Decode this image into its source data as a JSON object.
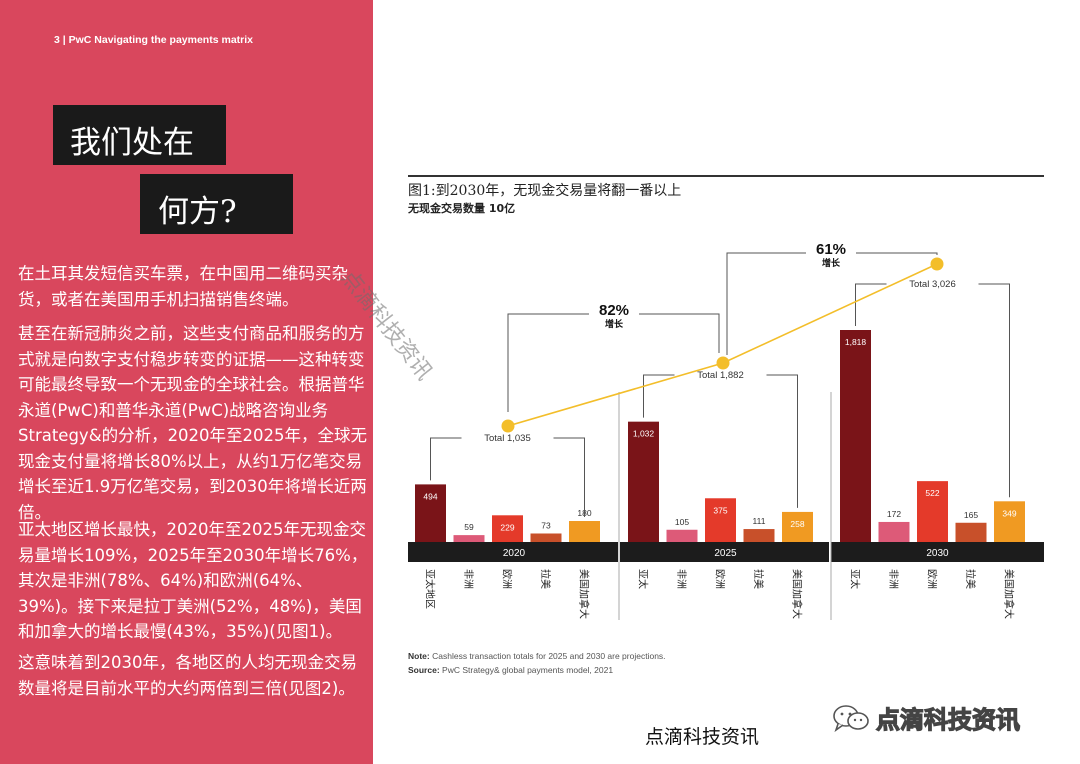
{
  "page": {
    "header": "3 | PwC Navigating the payments matrix",
    "title_line1": "我们处在",
    "title_line2": "何方?",
    "paragraphs": [
      "在土耳其发短信买车票，在中国用二维码买杂货，或者在美国用手机扫描销售终端。",
      "甚至在新冠肺炎之前，这些支付商品和服务的方式就是向数字支付稳步转变的证据——这种转变可能最终导致一个无现金的全球社会。根据普华永道(PwC)和普华永道(PwC)战略咨询业务Strategy&的分析，2020年至2025年，全球无现金支付量将增长80%以上，从约1万亿笔交易增长至近1.9万亿笔交易，到2030年将增长近两倍。",
      "亚太地区增长最快，2020年至2025年无现金交易量增长109%，2025年至2030年增长76%，其次是非洲(78%、64%)和欧洲(64%、39%)。接下来是拉丁美洲(52%，48%)，美国和加拿大的增长最慢(43%，35%)(见图1)。",
      "这意味着到2030年，各地区的人均无现金交易数量将是目前水平的大约两倍到三倍(见图2)。"
    ],
    "watermark": "点滴科技资讯",
    "footer_watermark": "点滴科技资讯",
    "logo_text": "点滴科技资讯",
    "logo_icon": "wechat-icon",
    "note_label": "Note:",
    "note_text": "Cashless transaction totals for 2025 and 2030 are projections.",
    "source_label": "Source:",
    "source_text": "PwC Strategy& global payments model, 2021",
    "colors": {
      "panel": "#d9475d",
      "title_box": "#1a1a1a",
      "asia": "#7a1418",
      "africa": "#dd5a78",
      "europe": "#e43a2a",
      "latam": "#c8502a",
      "na": "#f09a22",
      "trend": "#f3be2a",
      "band": "#1c1c1c"
    }
  },
  "chart_data": {
    "type": "bar",
    "title": "图1:到2030年，无现金交易量将翻一番以上",
    "subtitle": "无现金交易数量 10亿",
    "groups": [
      "2020",
      "2025",
      "2030"
    ],
    "categories": [
      "亚太地区",
      "非洲",
      "欧洲",
      "拉美",
      "美国加拿大"
    ],
    "category_labels_by_group": [
      [
        "亚太地区",
        "非洲",
        "欧洲",
        "拉美",
        "美国加拿大"
      ],
      [
        "亚太",
        "非洲",
        "欧洲",
        "拉美",
        "美国加拿大"
      ],
      [
        "亚太",
        "非洲",
        "欧洲",
        "拉美",
        "美国加拿大"
      ]
    ],
    "values": [
      [
        494,
        59,
        229,
        73,
        180
      ],
      [
        1032,
        105,
        375,
        111,
        258
      ],
      [
        1818,
        172,
        522,
        165,
        349
      ]
    ],
    "value_labels": [
      [
        "494",
        "59",
        "229",
        "73",
        "180"
      ],
      [
        "1,032",
        "105",
        "375",
        "111",
        "258"
      ],
      [
        "1,818",
        "172",
        "522",
        "165",
        "349"
      ]
    ],
    "totals": [
      1035,
      1882,
      3026
    ],
    "total_labels": [
      "Total 1,035",
      "Total 1,882",
      "Total 3,026"
    ],
    "growth": [
      {
        "pct": "82%",
        "label": "增长"
      },
      {
        "pct": "61%",
        "label": "增长"
      }
    ],
    "ylim": [
      0,
      3100
    ],
    "grid": false
  }
}
